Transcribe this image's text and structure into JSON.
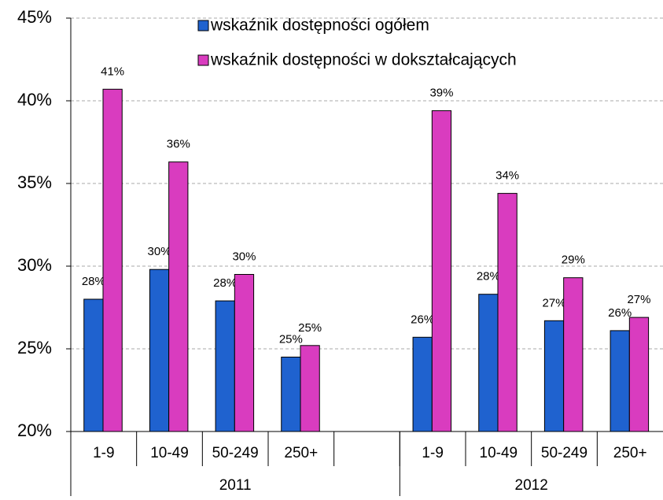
{
  "chart_data": {
    "type": "bar",
    "categories": [
      "1-9",
      "10-49",
      "50-249",
      "250+",
      null,
      "1-9",
      "10-49",
      "50-249",
      "250+"
    ],
    "groups": [
      {
        "label": "2011",
        "size": 5
      },
      {
        "label": "2012",
        "size": 4
      }
    ],
    "series": [
      {
        "name": "wskaźnik dostępności ogółem",
        "color": "#1f62cf",
        "values": [
          28.0,
          29.8,
          27.9,
          24.5,
          null,
          25.7,
          28.3,
          26.7,
          26.1
        ],
        "value_labels": [
          "28%",
          "30%",
          "28%",
          "25%",
          null,
          "26%",
          "28%",
          "27%",
          "26%"
        ]
      },
      {
        "name": "wskaźnik dostępności w dokształcających",
        "color": "#d93cbf",
        "values": [
          40.7,
          36.3,
          29.5,
          25.2,
          null,
          39.4,
          34.4,
          29.3,
          26.9
        ],
        "value_labels": [
          "41%",
          "36%",
          "30%",
          "25%",
          null,
          "39%",
          "34%",
          "29%",
          "27%"
        ]
      }
    ],
    "ylim": [
      20,
      45
    ],
    "yticks": [
      {
        "value": 20,
        "label": "20%"
      },
      {
        "value": 25,
        "label": "25%"
      },
      {
        "value": 30,
        "label": "30%"
      },
      {
        "value": 35,
        "label": "35%"
      },
      {
        "value": 40,
        "label": "40%"
      },
      {
        "value": 45,
        "label": "45%"
      }
    ],
    "grid": true,
    "legend": "top"
  }
}
